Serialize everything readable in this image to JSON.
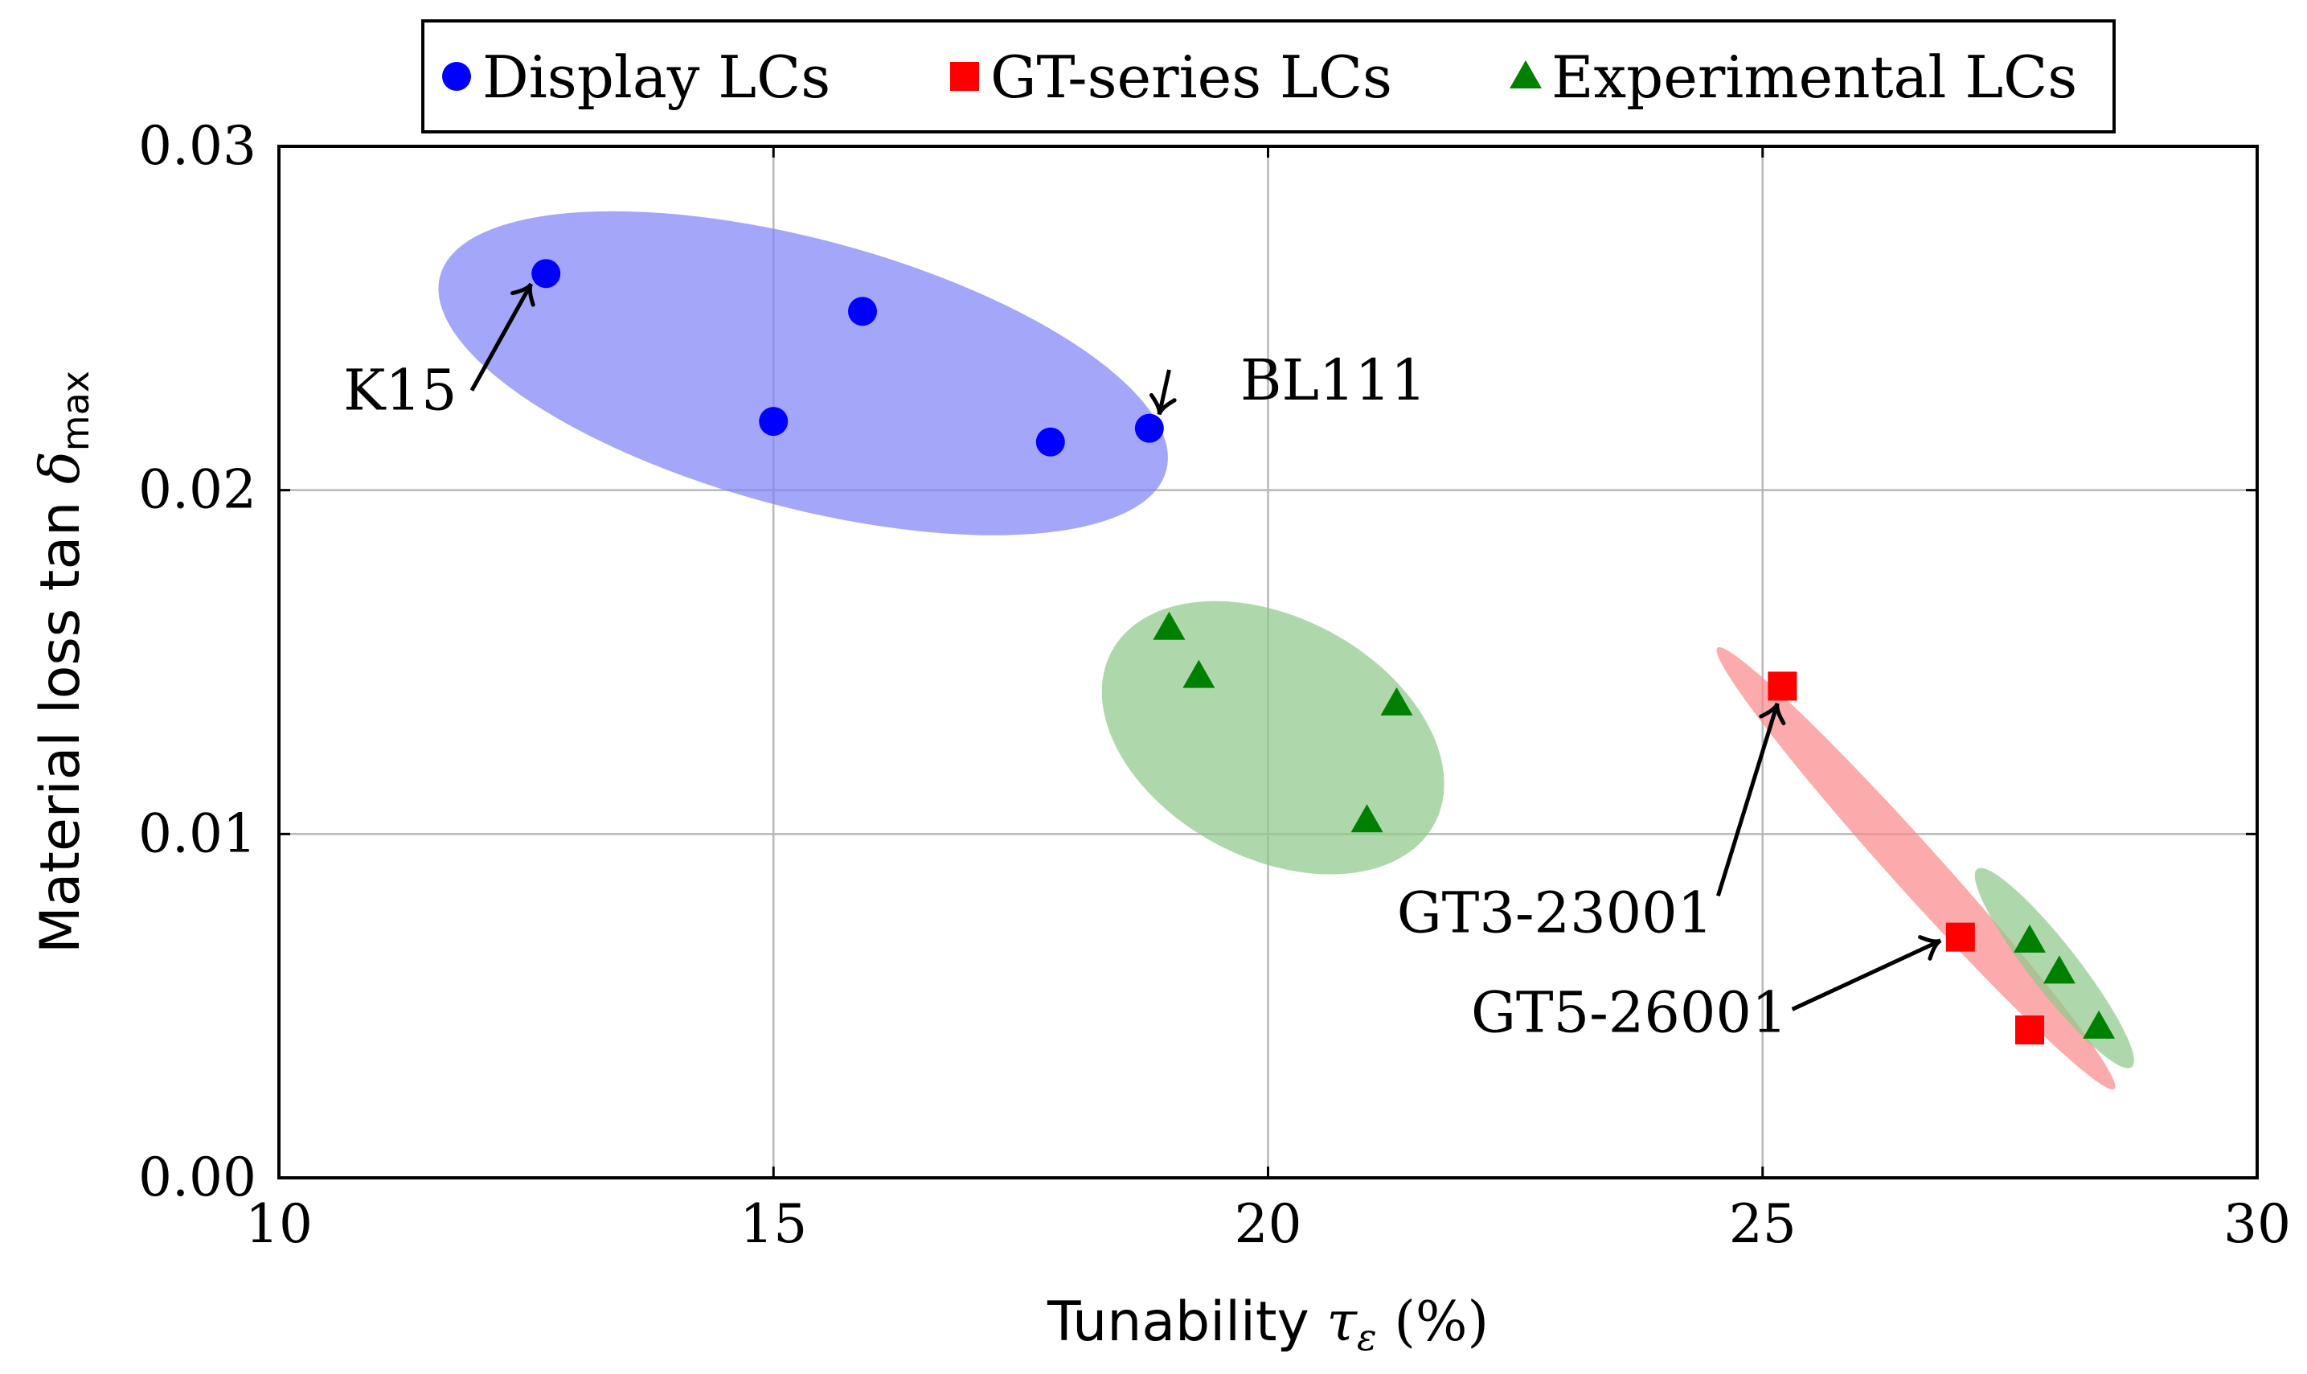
{
  "chart_data": {
    "type": "scatter",
    "title": "",
    "xlabel_main": "Tunability ",
    "xlabel_symbol": "τ",
    "xlabel_sub": "ε",
    "xlabel_unit": " (%)",
    "ylabel_main": "Material loss tan ",
    "ylabel_symbol": "δ",
    "ylabel_sub": "max",
    "xlim": [
      10,
      30
    ],
    "ylim": [
      0,
      0.03
    ],
    "grid": true,
    "x_ticks": [
      10,
      15,
      20,
      25,
      30
    ],
    "x_tick_labels": [
      "10",
      "15",
      "20",
      "25",
      "30"
    ],
    "y_ticks": [
      0,
      0.01,
      0.02,
      0.03
    ],
    "y_tick_labels": [
      "0.00",
      "0.01",
      "0.02",
      "0.03"
    ],
    "legend_position": "top-center",
    "series": [
      {
        "name": "Display LCs",
        "marker": "circle",
        "color": "#0000ff",
        "points": [
          [
            12.7,
            0.0263
          ],
          [
            15.0,
            0.022
          ],
          [
            15.9,
            0.0252
          ],
          [
            17.8,
            0.0214
          ],
          [
            18.8,
            0.0218
          ]
        ]
      },
      {
        "name": "GT-series LCs",
        "marker": "square",
        "color": "#ff0000",
        "points": [
          [
            25.2,
            0.0143
          ],
          [
            27.0,
            0.007
          ],
          [
            27.7,
            0.0043
          ]
        ]
      },
      {
        "name": "Experimental LCs",
        "marker": "triangle",
        "color": "#008000",
        "points": [
          [
            19.0,
            0.016
          ],
          [
            19.3,
            0.0146
          ],
          [
            21.0,
            0.0104
          ],
          [
            21.3,
            0.0138
          ],
          [
            27.7,
            0.0069
          ],
          [
            28.0,
            0.006
          ],
          [
            28.4,
            0.0044
          ]
        ]
      }
    ],
    "regions": [
      {
        "name": "display-region",
        "color": "#7f84f7",
        "cx": 15.3,
        "cy": 0.0234,
        "rx": 3.8,
        "ry": 0.0039,
        "angle_deg": 15
      },
      {
        "name": "experimental-mid-region",
        "color": "#8fc98c",
        "cx": 20.05,
        "cy": 0.0128,
        "rx": 1.85,
        "ry": 0.0035,
        "angle_deg": 28
      },
      {
        "name": "gt-region",
        "color": "#f98a8a",
        "cx": 26.55,
        "cy": 0.009,
        "rx": 3.0,
        "ry": 0.0007,
        "angle_deg": 48
      },
      {
        "name": "experimental-high-region",
        "color": "#8fc98c",
        "cx": 27.95,
        "cy": 0.0061,
        "rx": 1.27,
        "ry": 0.0007,
        "angle_deg": 52
      }
    ],
    "annotations": [
      {
        "name": "k15-annotation",
        "text": "K15",
        "anchor": "end",
        "label_x": 11.8,
        "label_y": 0.0229,
        "from_x": 11.95,
        "from_y": 0.0229,
        "to_x": 12.55,
        "to_y": 0.026
      },
      {
        "name": "bl111-annotation",
        "text": "BL111",
        "anchor": "start",
        "label_x": 19.72,
        "label_y": 0.0232,
        "from_x": 19.0,
        "from_y": 0.0235,
        "to_x": 18.9,
        "to_y": 0.0222
      },
      {
        "name": "gt3-23001-annotation",
        "text": "GT3-23001",
        "anchor": "end",
        "label_x": 24.5,
        "label_y": 0.0077,
        "from_x": 24.55,
        "from_y": 0.0082,
        "to_x": 25.15,
        "to_y": 0.0138
      },
      {
        "name": "gt5-26001-annotation",
        "text": "GT5-26001",
        "anchor": "end",
        "label_x": 25.25,
        "label_y": 0.0048,
        "from_x": 25.3,
        "from_y": 0.0049,
        "to_x": 26.8,
        "to_y": 0.0069
      }
    ]
  }
}
